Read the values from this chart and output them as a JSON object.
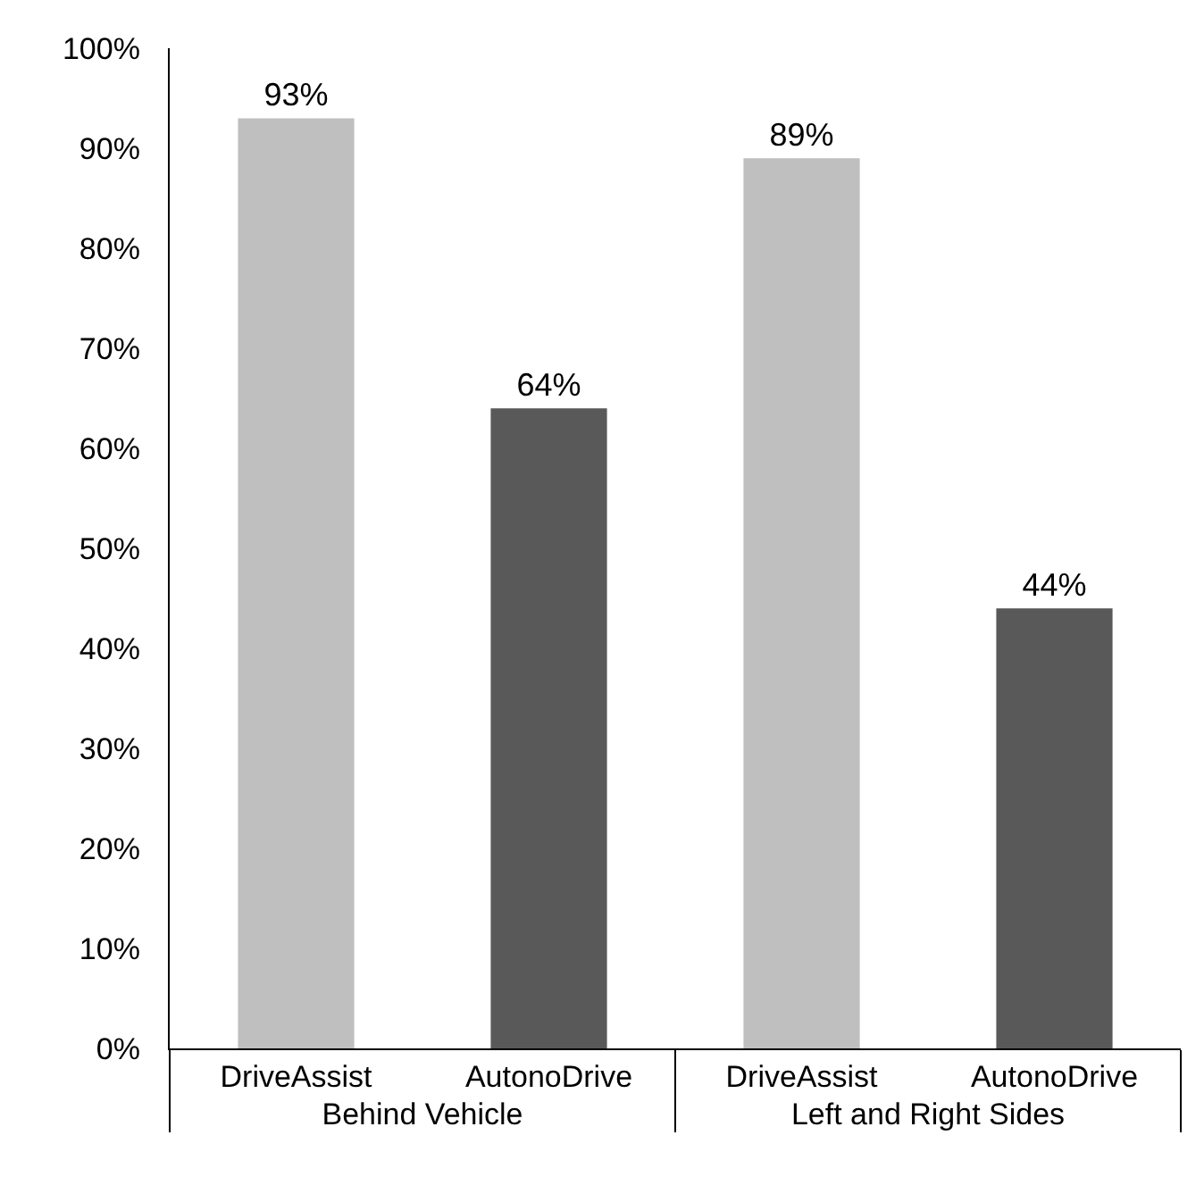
{
  "chart_data": {
    "type": "bar",
    "categories": [
      "Behind Vehicle",
      "Left and Right Sides"
    ],
    "series": [
      {
        "name": "DriveAssist",
        "color": "#bfbfbf",
        "values": [
          93,
          89
        ],
        "value_labels": [
          "93%",
          "89%"
        ]
      },
      {
        "name": "AutonoDrive",
        "color": "#595959",
        "values": [
          64,
          44
        ],
        "value_labels": [
          "64%",
          "44%"
        ]
      }
    ],
    "ylim": [
      0,
      100
    ],
    "yticks": [
      {
        "value": 0,
        "label": "0%"
      },
      {
        "value": 10,
        "label": "10%"
      },
      {
        "value": 20,
        "label": "20%"
      },
      {
        "value": 30,
        "label": "30%"
      },
      {
        "value": 40,
        "label": "40%"
      },
      {
        "value": 50,
        "label": "50%"
      },
      {
        "value": 60,
        "label": "60%"
      },
      {
        "value": 70,
        "label": "70%"
      },
      {
        "value": 80,
        "label": "80%"
      },
      {
        "value": 90,
        "label": "90%"
      },
      {
        "value": 100,
        "label": "100%"
      }
    ]
  }
}
